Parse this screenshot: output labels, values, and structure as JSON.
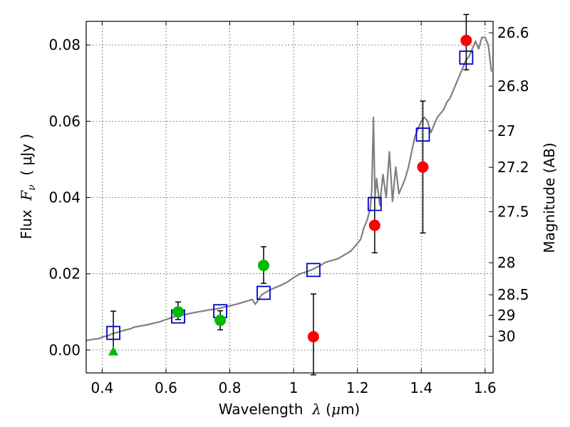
{
  "chart_data": {
    "type": "scatter",
    "xlabel_prefix": "Wavelength  ",
    "xlabel_symbol": "λ",
    "xlabel_unit_open": " (",
    "xlabel_unit_mu": "μ",
    "xlabel_unit_rest": "m)",
    "ylabel_prefix": "Flux  ",
    "ylabel_symbol": "F",
    "ylabel_subscript": "ν",
    "ylabel_unit": "  ( μJy )",
    "y2label": "Magnitude (AB)",
    "xlim": [
      0.35,
      1.625
    ],
    "ylim": [
      -0.006,
      0.0862
    ],
    "x_ticks": [
      {
        "v": 0.4,
        "label": "0.4"
      },
      {
        "v": 0.6,
        "label": "0.6"
      },
      {
        "v": 0.8,
        "label": "0.8"
      },
      {
        "v": 1.0,
        "label": "1"
      },
      {
        "v": 1.2,
        "label": "1.2"
      },
      {
        "v": 1.4,
        "label": "1.4"
      },
      {
        "v": 1.6,
        "label": "1.6"
      }
    ],
    "y_ticks": [
      {
        "v": 0.0,
        "label": "0.00"
      },
      {
        "v": 0.02,
        "label": "0.02"
      },
      {
        "v": 0.04,
        "label": "0.04"
      },
      {
        "v": 0.06,
        "label": "0.06"
      },
      {
        "v": 0.08,
        "label": "0.08"
      }
    ],
    "mag_ticks": [
      {
        "label": "26.6",
        "flux": 0.0832
      },
      {
        "label": "26.8",
        "flux": 0.0692
      },
      {
        "label": "27",
        "flux": 0.0575
      },
      {
        "label": "27.2",
        "flux": 0.0479
      },
      {
        "label": "27.5",
        "flux": 0.0363
      },
      {
        "label": "28",
        "flux": 0.0229
      },
      {
        "label": "28.5",
        "flux": 0.0145
      },
      {
        "label": "29",
        "flux": 0.0091
      },
      {
        "label": "30",
        "flux": 0.0036
      }
    ],
    "grid": true,
    "template_spectrum": {
      "name": "",
      "color": "#808080",
      "x": [
        0.35,
        0.37,
        0.39,
        0.4,
        0.42,
        0.43,
        0.45,
        0.47,
        0.49,
        0.5,
        0.52,
        0.54,
        0.56,
        0.58,
        0.6,
        0.62,
        0.64,
        0.66,
        0.68,
        0.7,
        0.72,
        0.74,
        0.76,
        0.78,
        0.8,
        0.82,
        0.84,
        0.86,
        0.87,
        0.88,
        0.9,
        0.92,
        0.94,
        0.96,
        0.98,
        1.0,
        1.02,
        1.04,
        1.06,
        1.08,
        1.1,
        1.12,
        1.14,
        1.16,
        1.18,
        1.2,
        1.21,
        1.22,
        1.23,
        1.24,
        1.245,
        1.25,
        1.255,
        1.26,
        1.27,
        1.28,
        1.29,
        1.3,
        1.31,
        1.32,
        1.33,
        1.34,
        1.35,
        1.36,
        1.37,
        1.38,
        1.39,
        1.4,
        1.41,
        1.42,
        1.43,
        1.44,
        1.45,
        1.46,
        1.47,
        1.48,
        1.49,
        1.5,
        1.51,
        1.52,
        1.53,
        1.54,
        1.55,
        1.56,
        1.57,
        1.58,
        1.59,
        1.6,
        1.61,
        1.62
      ],
      "y": [
        0.0025,
        0.0028,
        0.003,
        0.0034,
        0.0038,
        0.0042,
        0.0047,
        0.0052,
        0.0056,
        0.006,
        0.0063,
        0.0066,
        0.007,
        0.0074,
        0.008,
        0.0086,
        0.009,
        0.0093,
        0.0097,
        0.01,
        0.0103,
        0.0106,
        0.0108,
        0.0112,
        0.0116,
        0.012,
        0.0125,
        0.013,
        0.0133,
        0.012,
        0.0145,
        0.0155,
        0.0163,
        0.017,
        0.0178,
        0.019,
        0.02,
        0.0205,
        0.0212,
        0.022,
        0.023,
        0.0235,
        0.024,
        0.025,
        0.026,
        0.028,
        0.029,
        0.032,
        0.034,
        0.037,
        0.042,
        0.061,
        0.04,
        0.045,
        0.038,
        0.046,
        0.04,
        0.052,
        0.039,
        0.048,
        0.041,
        0.043,
        0.045,
        0.048,
        0.052,
        0.056,
        0.058,
        0.06,
        0.061,
        0.06,
        0.057,
        0.059,
        0.061,
        0.062,
        0.063,
        0.065,
        0.066,
        0.068,
        0.07,
        0.072,
        0.074,
        0.076,
        0.077,
        0.079,
        0.081,
        0.079,
        0.082,
        0.082,
        0.08,
        0.073
      ]
    },
    "model_points": {
      "name": "",
      "color": "#0000cc",
      "marker": "open-square",
      "x": [
        0.435,
        0.638,
        0.77,
        0.906,
        1.062,
        1.254,
        1.405,
        1.541
      ],
      "y": [
        0.0045,
        0.0088,
        0.0102,
        0.015,
        0.021,
        0.0383,
        0.0565,
        0.0767
      ]
    },
    "observed_red": {
      "name": "",
      "color": "#ff0000",
      "marker": "filled-circle",
      "x": [
        1.062,
        1.254,
        1.405,
        1.541
      ],
      "y": [
        0.0035,
        0.0327,
        0.048,
        0.0812
      ],
      "err_low": [
        0.01,
        0.0072,
        0.0173,
        0.0077
      ],
      "err_high": [
        0.0112,
        0.0073,
        0.0173,
        0.0068
      ]
    },
    "observed_green": {
      "name": "",
      "color": "#00bb00",
      "marker": "filled-circle",
      "x": [
        0.638,
        0.77,
        0.906
      ],
      "y": [
        0.01,
        0.0078,
        0.0222
      ],
      "err_low": [
        0.002,
        0.0025,
        0.0047
      ],
      "err_high": [
        0.0026,
        0.0025,
        0.0049
      ]
    },
    "upper_limit": {
      "name": "",
      "color": "#00bb00",
      "marker": "triangle",
      "x": [
        0.435
      ],
      "y": [
        -0.0003
      ],
      "err_low": [
        0.0
      ],
      "err_high": [
        0.0105
      ]
    }
  }
}
